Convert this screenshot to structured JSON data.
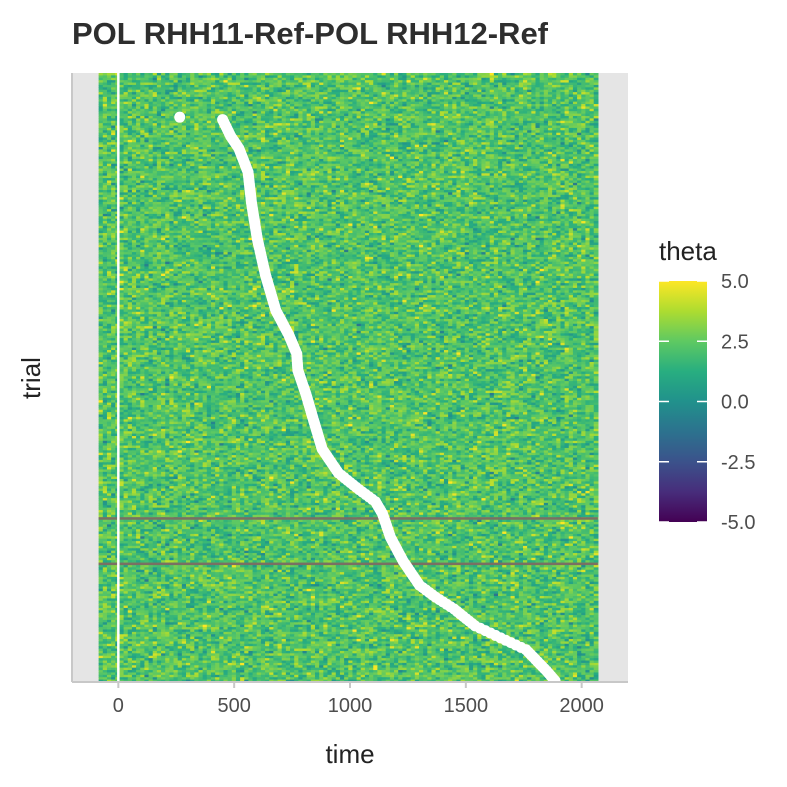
{
  "chart_data": {
    "type": "heatmap",
    "title": "POL RHH11-Ref-POL RHH12-Ref",
    "xlabel": "time",
    "ylabel": "trial",
    "xlim": [
      -200,
      2200
    ],
    "x_ticks": [
      0,
      500,
      1000,
      1500,
      2000
    ],
    "x_tick_labels": [
      "0",
      "500",
      "1000",
      "1500",
      "2000"
    ],
    "heatmap_x_range": [
      -85,
      2070
    ],
    "trial_count": 255,
    "y_tick_labels": [],
    "fill_variable": "theta",
    "color_scale": "viridis",
    "color_limits": [
      -5.0,
      5.0
    ],
    "legend": {
      "title": "theta",
      "placement": "right",
      "tick_values": [
        5.0,
        2.5,
        0.0,
        -2.5,
        -5.0
      ],
      "tick_labels": [
        "5.0",
        "2.5",
        "0.0",
        "-2.5",
        "-5.0"
      ]
    },
    "reference_line": {
      "x": 0,
      "color": "#ffffff"
    },
    "highlighted_trials": [
      {
        "trial_from_top": 187,
        "color": "#7a6f63"
      },
      {
        "trial_from_top": 206,
        "color": "#7a6f63"
      }
    ],
    "event_series": {
      "name": "",
      "color": "#ffffff",
      "points": [
        {
          "trial_from_top": 19,
          "time": 265
        },
        {
          "trial_from_top": 20,
          "time": 450
        },
        {
          "trial_from_top": 27,
          "time": 485
        },
        {
          "trial_from_top": 32,
          "time": 520
        },
        {
          "trial_from_top": 42,
          "time": 560
        },
        {
          "trial_from_top": 55,
          "time": 575
        },
        {
          "trial_from_top": 70,
          "time": 600
        },
        {
          "trial_from_top": 85,
          "time": 635
        },
        {
          "trial_from_top": 100,
          "time": 680
        },
        {
          "trial_from_top": 110,
          "time": 735
        },
        {
          "trial_from_top": 118,
          "time": 770
        },
        {
          "trial_from_top": 125,
          "time": 775
        },
        {
          "trial_from_top": 135,
          "time": 810
        },
        {
          "trial_from_top": 145,
          "time": 840
        },
        {
          "trial_from_top": 158,
          "time": 880
        },
        {
          "trial_from_top": 168,
          "time": 950
        },
        {
          "trial_from_top": 175,
          "time": 1040
        },
        {
          "trial_from_top": 180,
          "time": 1110
        },
        {
          "trial_from_top": 185,
          "time": 1140
        },
        {
          "trial_from_top": 195,
          "time": 1175
        },
        {
          "trial_from_top": 205,
          "time": 1230
        },
        {
          "trial_from_top": 215,
          "time": 1300
        },
        {
          "trial_from_top": 220,
          "time": 1370
        },
        {
          "trial_from_top": 225,
          "time": 1450
        },
        {
          "trial_from_top": 232,
          "time": 1540
        },
        {
          "trial_from_top": 237,
          "time": 1650
        },
        {
          "trial_from_top": 242,
          "time": 1760
        },
        {
          "trial_from_top": 246,
          "time": 1800
        },
        {
          "trial_from_top": 251,
          "time": 1850
        },
        {
          "trial_from_top": 255,
          "time": 1885
        }
      ]
    }
  }
}
